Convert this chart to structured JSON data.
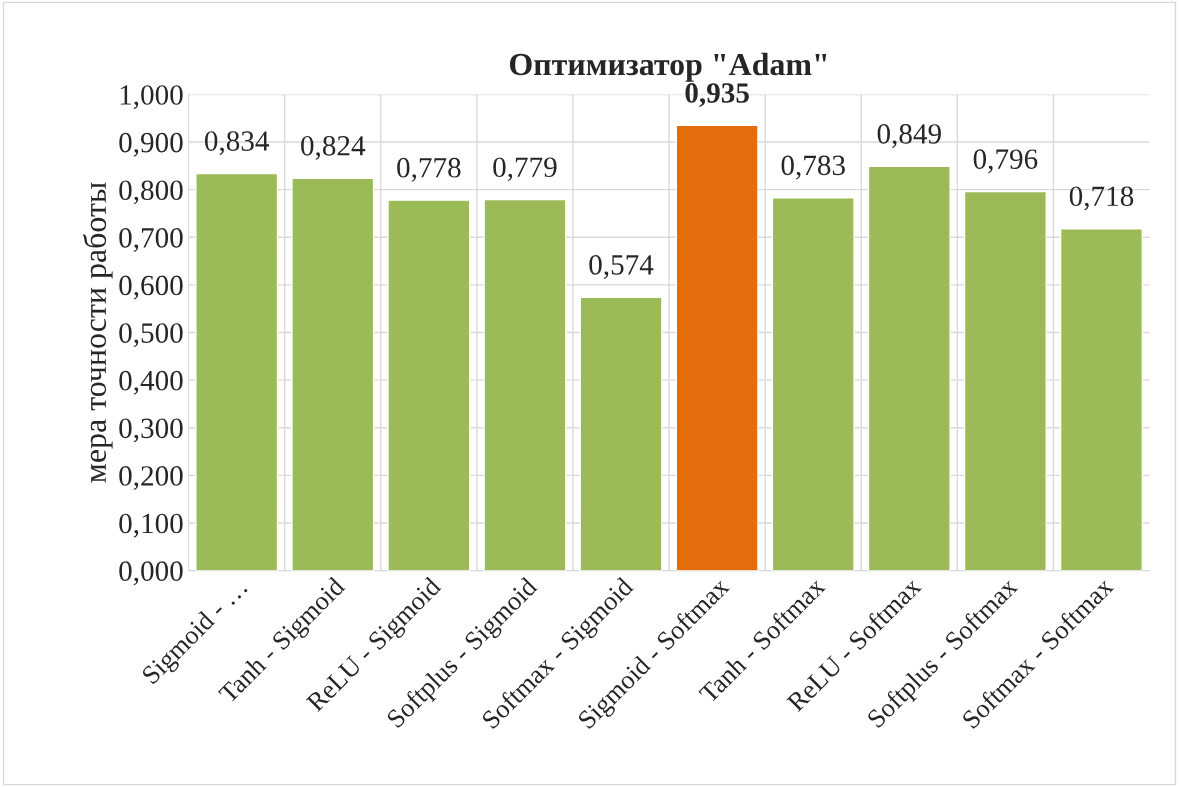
{
  "chart_data": {
    "type": "bar",
    "title": "Оптимизатор \"Adam\"",
    "ylabel": "мера точности работы",
    "categories": [
      "Sigmoid - …",
      "Tanh - Sigmoid",
      "ReLU - Sigmoid",
      "Softplus - Sigmoid",
      "Softmax - Sigmoid",
      "Sigmoid - Softmax",
      "Tanh - Softmax",
      "ReLU - Softmax",
      "Softplus - Softmax",
      "Softmax - Softmax"
    ],
    "values": [
      0.834,
      0.824,
      0.778,
      0.779,
      0.574,
      0.935,
      0.783,
      0.849,
      0.796,
      0.718
    ],
    "colors": [
      "#9bbb59",
      "#9bbb59",
      "#9bbb59",
      "#9bbb59",
      "#9bbb59",
      "#e46c0a",
      "#9bbb59",
      "#9bbb59",
      "#9bbb59",
      "#9bbb59"
    ],
    "value_labels": [
      "0,834",
      "0,824",
      "0,778",
      "0,779",
      "0,574",
      "0,935",
      "0,783",
      "0,849",
      "0,796",
      "0,718"
    ],
    "ylim": [
      0,
      1
    ],
    "yticks": [
      {
        "value": 0,
        "label": "0,000"
      },
      {
        "value": 0.1,
        "label": "0,100"
      },
      {
        "value": 0.2,
        "label": "0,200"
      },
      {
        "value": 0.3,
        "label": "0,300"
      },
      {
        "value": 0.4,
        "label": "0,400"
      },
      {
        "value": 0.5,
        "label": "0,500"
      },
      {
        "value": 0.6,
        "label": "0,600"
      },
      {
        "value": 0.7,
        "label": "0,700"
      },
      {
        "value": 0.8,
        "label": "0,800"
      },
      {
        "value": 0.9,
        "label": "0,900"
      },
      {
        "value": 1,
        "label": "1,000"
      }
    ],
    "grid": true
  }
}
